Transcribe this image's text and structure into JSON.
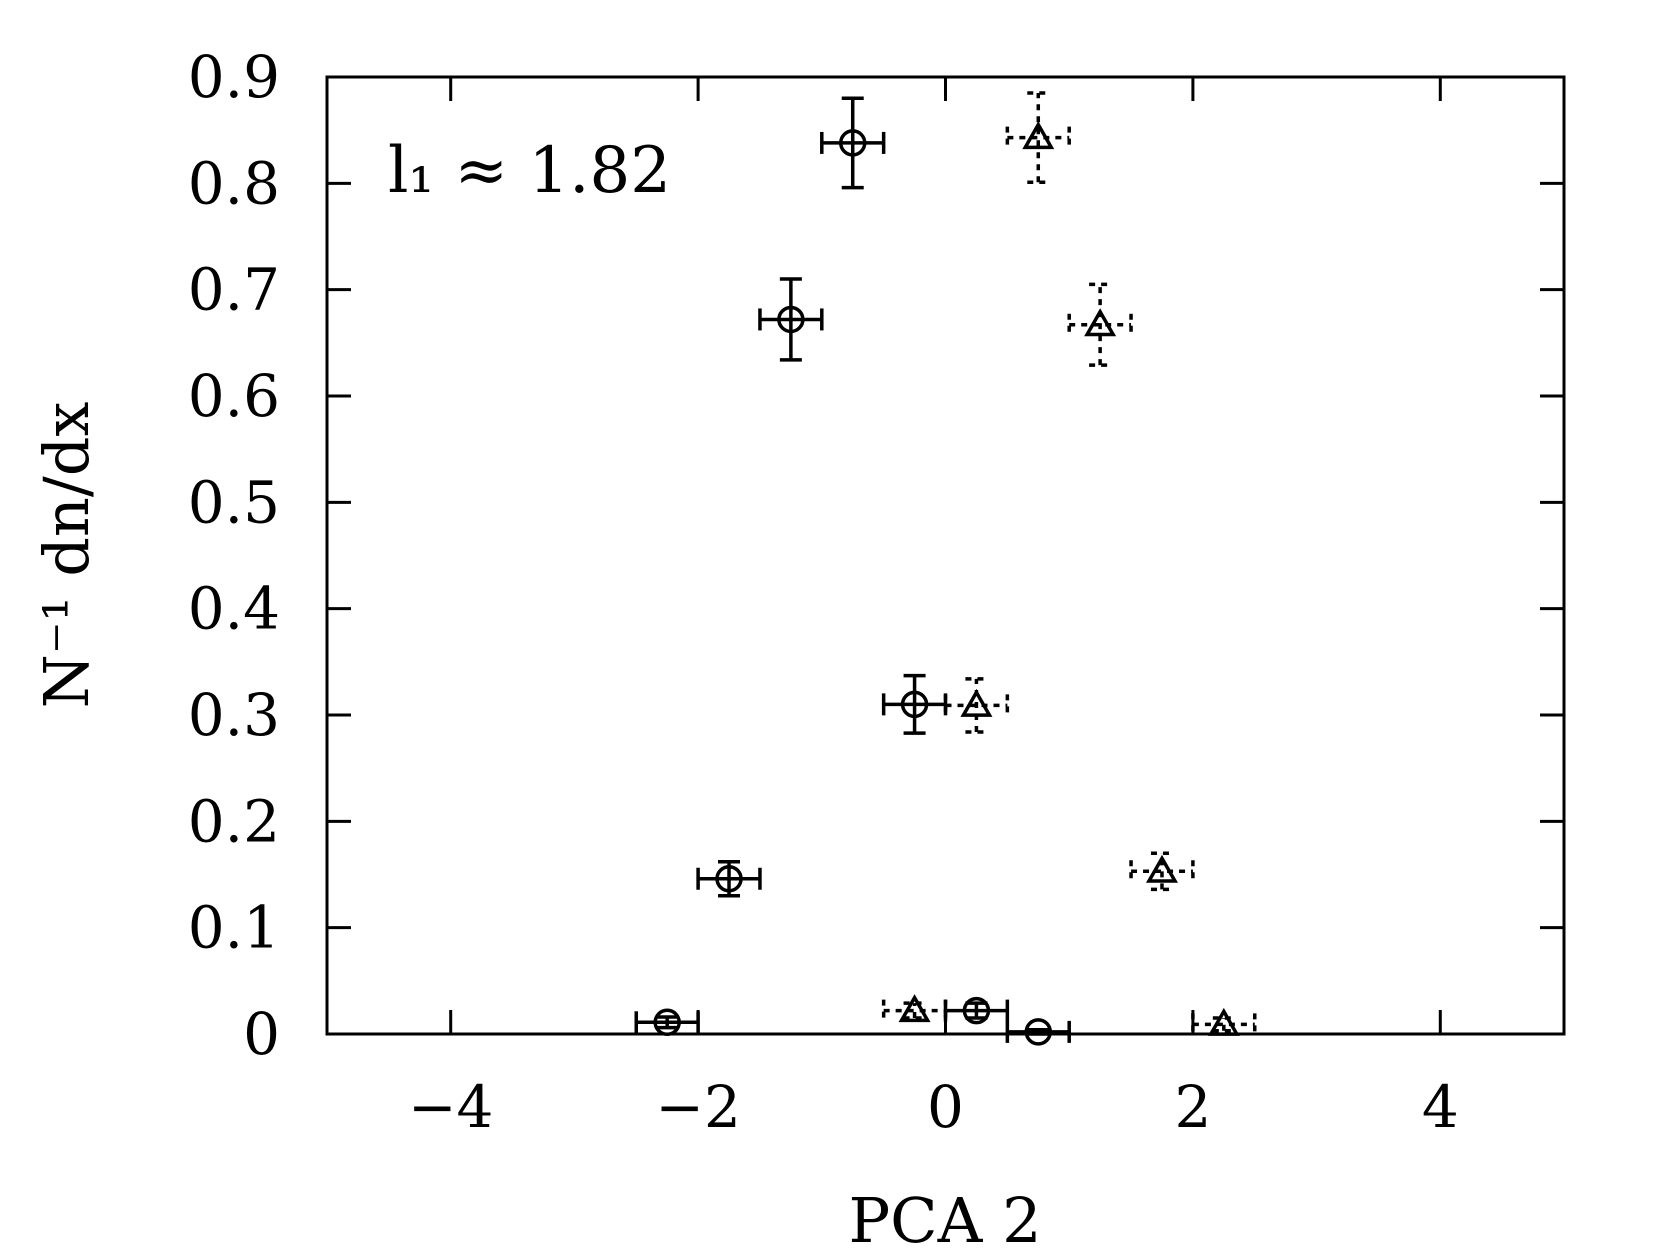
{
  "chart_data": {
    "type": "scatter",
    "xlabel": "PCA 2",
    "ylabel": "N⁻¹ dn/dx",
    "annotation": "l₁ ≈ 1.82",
    "xlim": [
      -5,
      5
    ],
    "ylim": [
      0,
      0.9
    ],
    "xticks": [
      -4,
      -2,
      0,
      2,
      4
    ],
    "xtick_labels": [
      "−4",
      "−2",
      "0",
      "2",
      "4"
    ],
    "yticks": [
      0,
      0.1,
      0.2,
      0.3,
      0.4,
      0.5,
      0.6,
      0.7,
      0.8,
      0.9
    ],
    "ytick_labels": [
      "0",
      "0.1",
      "0.2",
      "0.3",
      "0.4",
      "0.5",
      "0.6",
      "0.7",
      "0.8",
      "0.9"
    ],
    "grid": false,
    "series": [
      {
        "marker": "circle",
        "errorbar_style": "solid",
        "points": [
          {
            "x": -2.25,
            "y": 0.011,
            "xerr": 0.25,
            "yerr": 0.005
          },
          {
            "x": -1.75,
            "y": 0.146,
            "xerr": 0.25,
            "yerr": 0.016
          },
          {
            "x": -1.25,
            "y": 0.672,
            "xerr": 0.25,
            "yerr": 0.038
          },
          {
            "x": -0.75,
            "y": 0.838,
            "xerr": 0.25,
            "yerr": 0.042
          },
          {
            "x": -0.25,
            "y": 0.31,
            "xerr": 0.25,
            "yerr": 0.027
          },
          {
            "x": 0.25,
            "y": 0.022,
            "xerr": 0.25,
            "yerr": 0.007
          },
          {
            "x": 0.75,
            "y": 0.002,
            "xerr": 0.25,
            "yerr": 0.002
          }
        ]
      },
      {
        "marker": "triangle",
        "errorbar_style": "dashed",
        "points": [
          {
            "x": -0.25,
            "y": 0.022,
            "xerr": 0.25,
            "yerr": 0.007
          },
          {
            "x": 0.25,
            "y": 0.309,
            "xerr": 0.25,
            "yerr": 0.025
          },
          {
            "x": 0.75,
            "y": 0.843,
            "xerr": 0.25,
            "yerr": 0.042
          },
          {
            "x": 1.25,
            "y": 0.667,
            "xerr": 0.25,
            "yerr": 0.038
          },
          {
            "x": 1.75,
            "y": 0.153,
            "xerr": 0.25,
            "yerr": 0.017
          },
          {
            "x": 2.25,
            "y": 0.009,
            "xerr": 0.25,
            "yerr": 0.006
          }
        ]
      }
    ]
  }
}
